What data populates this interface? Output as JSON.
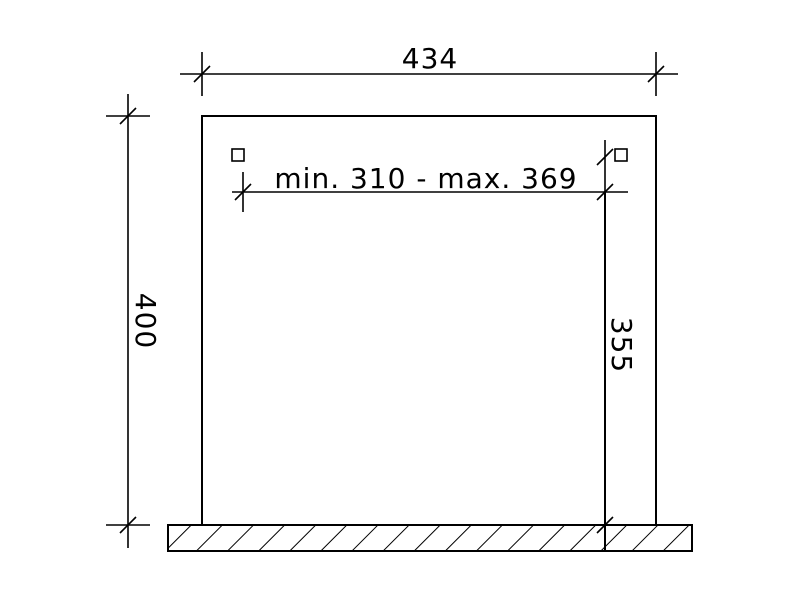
{
  "diagram": {
    "dimensions": {
      "overall_width": "434",
      "overall_height": "400",
      "clear_height": "355",
      "clear_width_range": "min. 310 - max. 369"
    }
  }
}
